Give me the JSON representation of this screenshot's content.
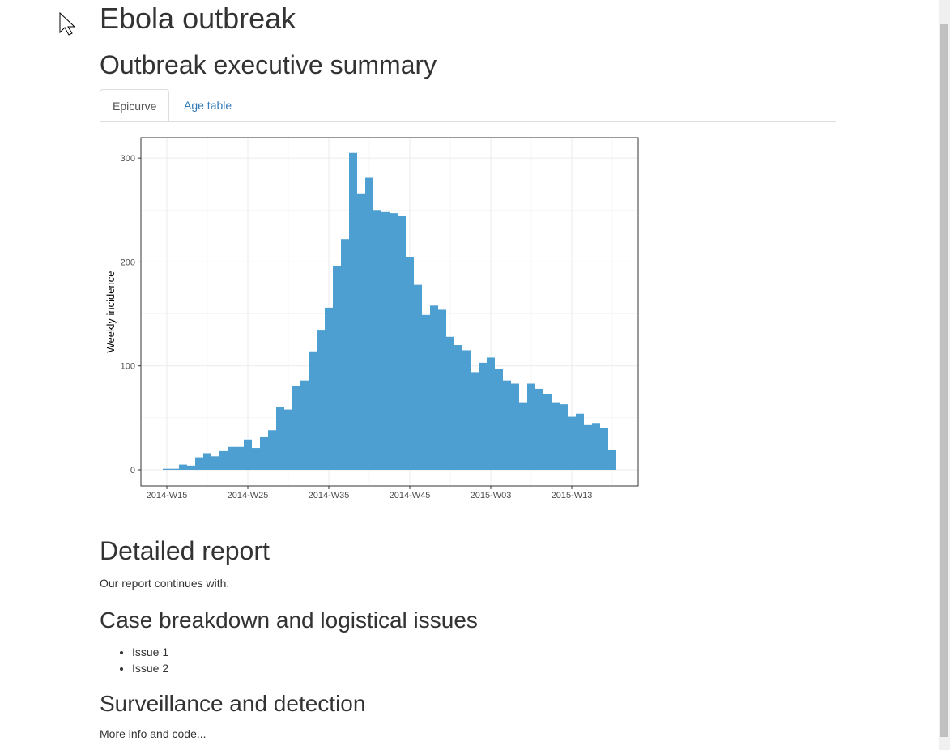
{
  "header": {
    "title": "Ebola outbreak"
  },
  "summary": {
    "title": "Outbreak executive summary",
    "tabs": [
      "Epicurve",
      "Age table"
    ],
    "chart_data": {
      "type": "bar",
      "ylabel": "Weekly incidence",
      "color": "#4c9fd0",
      "grid": true,
      "categories": [
        "2014-W15",
        null,
        null,
        null,
        null,
        null,
        null,
        null,
        null,
        null,
        "2014-W25",
        null,
        null,
        null,
        null,
        null,
        null,
        null,
        null,
        null,
        "2014-W35",
        null,
        null,
        null,
        null,
        null,
        null,
        null,
        null,
        null,
        "2014-W45",
        null,
        null,
        null,
        null,
        null,
        null,
        null,
        null,
        null,
        "2015-W03",
        null,
        null,
        null,
        null,
        null,
        null,
        null,
        null,
        null,
        "2015-W13",
        null,
        null,
        null,
        null,
        null
      ],
      "values": [
        1,
        1,
        5,
        4,
        12,
        16,
        13,
        18,
        22,
        22,
        29,
        21,
        32,
        38,
        60,
        58,
        81,
        86,
        114,
        134,
        156,
        196,
        222,
        305,
        266,
        281,
        250,
        248,
        247,
        244,
        205,
        178,
        149,
        158,
        154,
        128,
        120,
        115,
        94,
        103,
        108,
        97,
        86,
        83,
        65,
        83,
        78,
        73,
        65,
        63,
        51,
        54,
        43,
        45,
        40,
        19
      ],
      "ylim": [
        -15.6,
        319.6
      ],
      "yticks": [
        0,
        100,
        200,
        300
      ],
      "minor_yticks": [
        50,
        150,
        250
      ]
    }
  },
  "report": {
    "title": "Detailed report",
    "intro": "Our report continues with:",
    "sections": [
      {
        "title": "Case breakdown and logistical issues",
        "items": [
          "Issue 1",
          "Issue 2"
        ]
      },
      {
        "title": "Surveillance and detection",
        "text": "More info and code..."
      }
    ]
  }
}
